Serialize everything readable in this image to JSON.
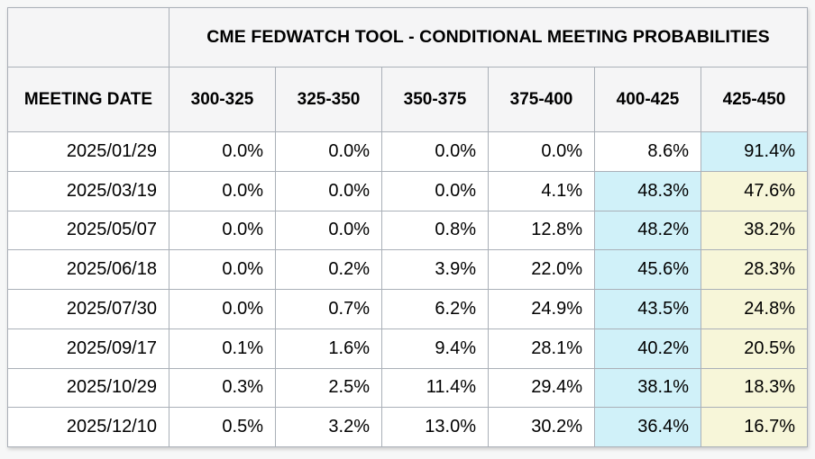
{
  "widget": {
    "title": "CME FEDWATCH TOOL - CONDITIONAL MEETING PROBABILITIES",
    "meeting_date_header": "MEETING DATE",
    "rate_range_headers": [
      "300-325",
      "325-350",
      "350-375",
      "375-400",
      "400-425",
      "425-450"
    ],
    "rows": [
      {
        "date": "2025/01/29",
        "values": [
          "0.0%",
          "0.0%",
          "0.0%",
          "0.0%",
          "8.6%",
          "91.4%"
        ],
        "highlights": [
          "none",
          "none",
          "none",
          "none",
          "none",
          "blue"
        ]
      },
      {
        "date": "2025/03/19",
        "values": [
          "0.0%",
          "0.0%",
          "0.0%",
          "4.1%",
          "48.3%",
          "47.6%"
        ],
        "highlights": [
          "none",
          "none",
          "none",
          "none",
          "blue",
          "yellow"
        ]
      },
      {
        "date": "2025/05/07",
        "values": [
          "0.0%",
          "0.0%",
          "0.8%",
          "12.8%",
          "48.2%",
          "38.2%"
        ],
        "highlights": [
          "none",
          "none",
          "none",
          "none",
          "blue",
          "yellow"
        ]
      },
      {
        "date": "2025/06/18",
        "values": [
          "0.0%",
          "0.2%",
          "3.9%",
          "22.0%",
          "45.6%",
          "28.3%"
        ],
        "highlights": [
          "none",
          "none",
          "none",
          "none",
          "blue",
          "yellow"
        ]
      },
      {
        "date": "2025/07/30",
        "values": [
          "0.0%",
          "0.7%",
          "6.2%",
          "24.9%",
          "43.5%",
          "24.8%"
        ],
        "highlights": [
          "none",
          "none",
          "none",
          "none",
          "blue",
          "yellow"
        ]
      },
      {
        "date": "2025/09/17",
        "values": [
          "0.1%",
          "1.6%",
          "9.4%",
          "28.1%",
          "40.2%",
          "20.5%"
        ],
        "highlights": [
          "none",
          "none",
          "none",
          "none",
          "blue",
          "yellow"
        ]
      },
      {
        "date": "2025/10/29",
        "values": [
          "0.3%",
          "2.5%",
          "11.4%",
          "29.4%",
          "38.1%",
          "18.3%"
        ],
        "highlights": [
          "none",
          "none",
          "none",
          "none",
          "blue",
          "yellow"
        ]
      },
      {
        "date": "2025/12/10",
        "values": [
          "0.5%",
          "3.2%",
          "13.0%",
          "30.2%",
          "36.4%",
          "16.7%"
        ],
        "highlights": [
          "none",
          "none",
          "none",
          "none",
          "blue",
          "yellow"
        ]
      }
    ],
    "colors": {
      "highlight_blue": "#d0f1f9",
      "highlight_yellow": "#f7f6d9",
      "header_bg": "#f5f5f6",
      "border": "#aab0b8",
      "page_bg": "#f6f7f7"
    }
  },
  "chart_data": {
    "type": "table",
    "title": "CME FEDWATCH TOOL - CONDITIONAL MEETING PROBABILITIES",
    "columns": [
      "MEETING DATE",
      "300-325",
      "325-350",
      "350-375",
      "375-400",
      "400-425",
      "425-450"
    ],
    "rows": [
      [
        "2025/01/29",
        0.0,
        0.0,
        0.0,
        0.0,
        8.6,
        91.4
      ],
      [
        "2025/03/19",
        0.0,
        0.0,
        0.0,
        4.1,
        48.3,
        47.6
      ],
      [
        "2025/05/07",
        0.0,
        0.0,
        0.8,
        12.8,
        48.2,
        38.2
      ],
      [
        "2025/06/18",
        0.0,
        0.2,
        3.9,
        22.0,
        45.6,
        28.3
      ],
      [
        "2025/07/30",
        0.0,
        0.7,
        6.2,
        24.9,
        43.5,
        24.8
      ],
      [
        "2025/09/17",
        0.1,
        1.6,
        9.4,
        28.1,
        40.2,
        20.5
      ],
      [
        "2025/10/29",
        0.3,
        2.5,
        11.4,
        29.4,
        38.1,
        18.3
      ],
      [
        "2025/12/10",
        0.5,
        3.2,
        13.0,
        30.2,
        36.4,
        16.7
      ]
    ],
    "units": "percent probability",
    "notes": "blue highlight = highest probability cell in row; yellow highlight = 425-450 column cells in rows 2-8"
  }
}
